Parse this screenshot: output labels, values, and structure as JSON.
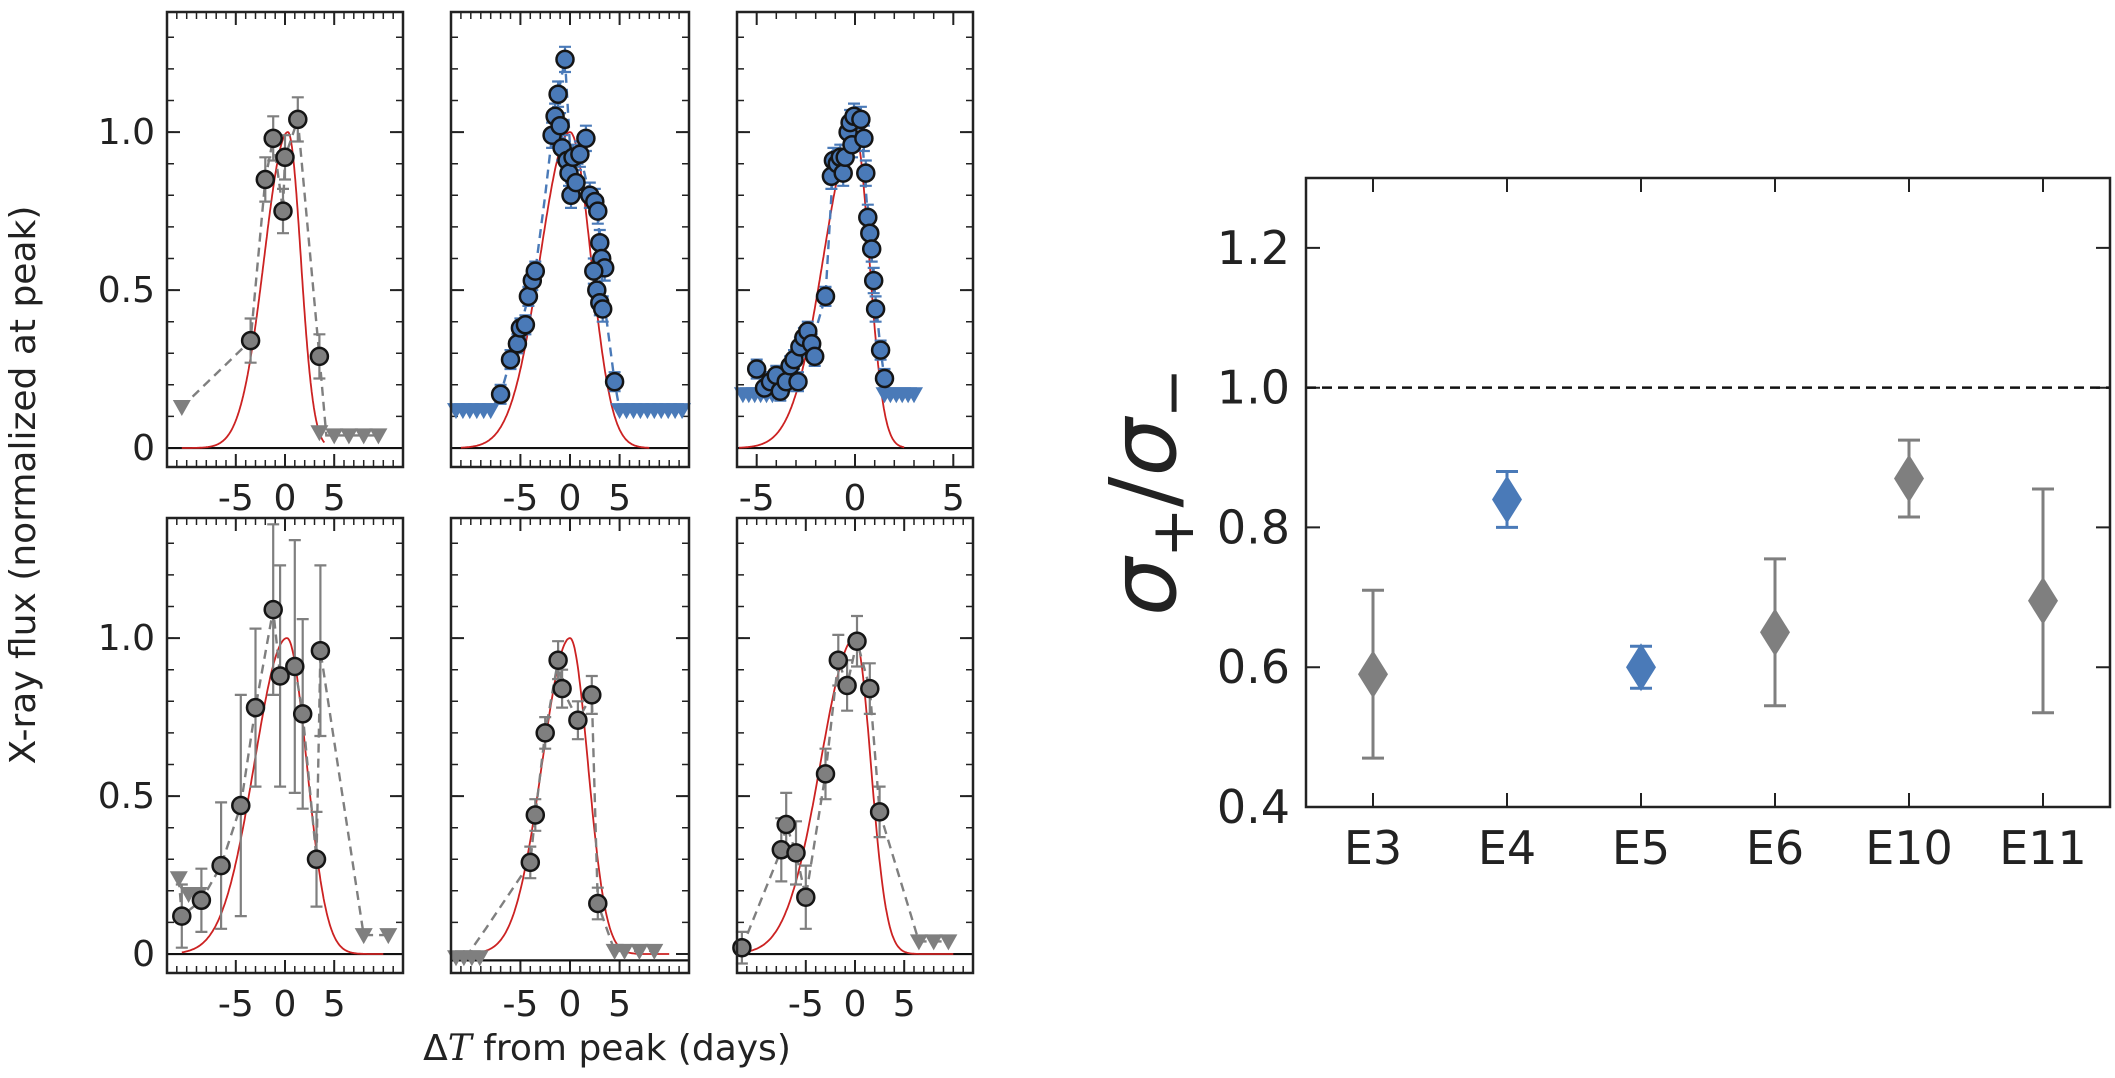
{
  "figure": {
    "ylabel": "X-ray flux (normalized at peak)",
    "xlabel_delta": "Δ",
    "xlabel_var": "T",
    "xlabel_rest": " from peak (days)",
    "ratio_ylabel": {
      "sigma": "σ",
      "plus": "+",
      "slash": "/",
      "minus": "−"
    }
  },
  "colors": {
    "blue": "#4a7ab8",
    "grey": "#7f7f7f",
    "red": "#cc2222",
    "axis": "#222222"
  },
  "chart_data": [
    {
      "id": "p1",
      "type": "scatter",
      "color": "grey",
      "xlim": [
        -12,
        12
      ],
      "ylim": [
        -0.06,
        1.38
      ],
      "xticks": [
        -5,
        0,
        5
      ],
      "yticks": [
        0,
        0.5,
        1.0
      ],
      "ytick_labels": [
        "0",
        "0.5",
        "1.0"
      ],
      "points": [
        [
          -3.5,
          0.34,
          0.07
        ],
        [
          -2,
          0.85,
          0.07
        ],
        [
          -1.2,
          0.98,
          0.07
        ],
        [
          -0.2,
          0.75,
          0.07
        ],
        [
          0,
          0.92,
          0.07
        ],
        [
          1.3,
          1.04,
          0.07
        ],
        [
          3.5,
          0.29,
          0.07
        ]
      ],
      "upper_limits": [
        [
          -10.5,
          0.13
        ],
        [
          3.5,
          0.05
        ],
        [
          5,
          0.04
        ],
        [
          6.5,
          0.04
        ],
        [
          8,
          0.04
        ],
        [
          9.5,
          0.04
        ]
      ],
      "dashed": [
        [
          -10.5,
          0.13
        ],
        [
          -3.5,
          0.34
        ],
        [
          -2,
          0.85
        ],
        [
          -1.2,
          0.98
        ],
        [
          -0.2,
          0.75
        ],
        [
          0,
          0.92
        ],
        [
          1.3,
          1.04
        ],
        [
          3.5,
          0.29
        ],
        [
          4.2,
          0.04
        ],
        [
          9.5,
          0.04
        ]
      ],
      "model": {
        "peak": 0.3,
        "sigma_minus": 2.4,
        "sigma_plus": 1.3,
        "from": -10.5,
        "to": 4
      },
      "baseline": 0
    },
    {
      "id": "p2",
      "type": "scatter",
      "color": "blue",
      "xlim": [
        -12,
        12
      ],
      "ylim": [
        -0.06,
        1.38
      ],
      "xticks": [
        -5,
        0,
        5
      ],
      "yticks": [
        0,
        0.5,
        1.0
      ],
      "points": [
        [
          -7,
          0.17,
          0.03
        ],
        [
          -6,
          0.28,
          0.03
        ],
        [
          -5.3,
          0.33,
          0.03
        ],
        [
          -5,
          0.38,
          0.03
        ],
        [
          -4.5,
          0.39,
          0.03
        ],
        [
          -4.2,
          0.48,
          0.03
        ],
        [
          -3.8,
          0.53,
          0.03
        ],
        [
          -3.5,
          0.56,
          0.03
        ],
        [
          -1.8,
          0.99,
          0.04
        ],
        [
          -1.5,
          1.05,
          0.04
        ],
        [
          -1.2,
          1.12,
          0.04
        ],
        [
          -1,
          1.02,
          0.04
        ],
        [
          -0.8,
          0.95,
          0.04
        ],
        [
          -0.5,
          1.23,
          0.04
        ],
        [
          -0.3,
          0.91,
          0.04
        ],
        [
          -0.1,
          0.87,
          0.04
        ],
        [
          0.1,
          0.8,
          0.04
        ],
        [
          0.3,
          0.92,
          0.04
        ],
        [
          0.6,
          0.84,
          0.04
        ],
        [
          1,
          0.93,
          0.04
        ],
        [
          1.6,
          0.98,
          0.04
        ],
        [
          2,
          0.8,
          0.04
        ],
        [
          2.5,
          0.78,
          0.04
        ],
        [
          2.8,
          0.75,
          0.04
        ],
        [
          3,
          0.65,
          0.04
        ],
        [
          3.2,
          0.6,
          0.04
        ],
        [
          3.5,
          0.57,
          0.04
        ],
        [
          2.4,
          0.56,
          0.04
        ],
        [
          2.7,
          0.5,
          0.04
        ],
        [
          3,
          0.46,
          0.04
        ],
        [
          3.3,
          0.44,
          0.04
        ],
        [
          4.5,
          0.21,
          0.03
        ]
      ],
      "upper_limits": [
        [
          -11.5,
          0.12
        ],
        [
          -10.8,
          0.12
        ],
        [
          -10.1,
          0.12
        ],
        [
          -9.4,
          0.12
        ],
        [
          -8.7,
          0.12
        ],
        [
          -8,
          0.12
        ],
        [
          5,
          0.12
        ],
        [
          5.7,
          0.12
        ],
        [
          6.4,
          0.12
        ],
        [
          7.1,
          0.12
        ],
        [
          7.8,
          0.12
        ],
        [
          8.5,
          0.12
        ],
        [
          9.2,
          0.12
        ],
        [
          9.9,
          0.12
        ],
        [
          10.6,
          0.12
        ],
        [
          11.3,
          0.12
        ]
      ],
      "dashed": [
        [
          -8,
          0.12
        ],
        [
          -7,
          0.17
        ],
        [
          -6,
          0.28
        ],
        [
          -5,
          0.38
        ],
        [
          -4.2,
          0.48
        ],
        [
          -3.5,
          0.56
        ],
        [
          -2.5,
          0.8
        ],
        [
          -1.8,
          0.99
        ],
        [
          -1.2,
          1.12
        ],
        [
          -0.5,
          1.23
        ],
        [
          0.1,
          0.9
        ],
        [
          1,
          0.93
        ],
        [
          2,
          0.8
        ],
        [
          2.8,
          0.75
        ],
        [
          3.3,
          0.5
        ],
        [
          4.5,
          0.21
        ],
        [
          5,
          0.12
        ]
      ],
      "model": {
        "peak": 0,
        "sigma_minus": 3.0,
        "sigma_plus": 2.1,
        "from": -11,
        "to": 8
      },
      "baseline": 0
    },
    {
      "id": "p3",
      "type": "scatter",
      "color": "blue",
      "xlim": [
        -6,
        6
      ],
      "ylim": [
        -0.06,
        1.38
      ],
      "xticks": [
        -5,
        0,
        5
      ],
      "yticks": [
        0,
        0.5,
        1.0
      ],
      "points": [
        [
          -5,
          0.25,
          0.03
        ],
        [
          -4.6,
          0.19,
          0.03
        ],
        [
          -4.3,
          0.21,
          0.03
        ],
        [
          -4,
          0.23,
          0.03
        ],
        [
          -3.8,
          0.18,
          0.03
        ],
        [
          -3.5,
          0.21,
          0.03
        ],
        [
          -3.3,
          0.26,
          0.03
        ],
        [
          -3.1,
          0.28,
          0.03
        ],
        [
          -2.9,
          0.21,
          0.03
        ],
        [
          -2.8,
          0.32,
          0.03
        ],
        [
          -2.6,
          0.35,
          0.03
        ],
        [
          -2.4,
          0.37,
          0.03
        ],
        [
          -2.2,
          0.33,
          0.03
        ],
        [
          -2.05,
          0.29,
          0.03
        ],
        [
          -1.5,
          0.48,
          0.03
        ],
        [
          -1.2,
          0.86,
          0.04
        ],
        [
          -1.1,
          0.91,
          0.04
        ],
        [
          -0.9,
          0.9,
          0.04
        ],
        [
          -0.75,
          0.92,
          0.04
        ],
        [
          -0.6,
          0.87,
          0.04
        ],
        [
          -0.5,
          0.92,
          0.04
        ],
        [
          -0.35,
          1.0,
          0.04
        ],
        [
          -0.25,
          1.03,
          0.04
        ],
        [
          -0.15,
          0.96,
          0.04
        ],
        [
          -0.05,
          1.05,
          0.04
        ],
        [
          0.3,
          1.04,
          0.04
        ],
        [
          0.45,
          0.98,
          0.04
        ],
        [
          0.55,
          0.87,
          0.04
        ],
        [
          0.65,
          0.73,
          0.04
        ],
        [
          0.75,
          0.68,
          0.04
        ],
        [
          0.85,
          0.63,
          0.04
        ],
        [
          0.95,
          0.53,
          0.04
        ],
        [
          1.05,
          0.44,
          0.04
        ],
        [
          1.3,
          0.31,
          0.03
        ],
        [
          1.5,
          0.22,
          0.03
        ]
      ],
      "upper_limits": [
        [
          -5.7,
          0.17
        ],
        [
          -5.4,
          0.17
        ],
        [
          -5.1,
          0.17
        ],
        [
          -4.8,
          0.17
        ],
        [
          -4.5,
          0.17
        ],
        [
          -4.2,
          0.17
        ],
        [
          1.5,
          0.17
        ],
        [
          1.8,
          0.17
        ],
        [
          2.1,
          0.17
        ],
        [
          2.4,
          0.17
        ],
        [
          2.7,
          0.17
        ],
        [
          3.0,
          0.17
        ]
      ],
      "dashed": [
        [
          -4.2,
          0.17
        ],
        [
          -3.5,
          0.21
        ],
        [
          -2.8,
          0.32
        ],
        [
          -2.2,
          0.33
        ],
        [
          -1.5,
          0.48
        ],
        [
          -1.1,
          0.91
        ],
        [
          -0.5,
          0.92
        ],
        [
          -0.05,
          1.05
        ],
        [
          0.3,
          1.04
        ],
        [
          0.65,
          0.73
        ],
        [
          0.95,
          0.53
        ],
        [
          1.3,
          0.31
        ],
        [
          1.5,
          0.22
        ],
        [
          1.8,
          0.17
        ]
      ],
      "model": {
        "peak": 0,
        "sigma_minus": 1.6,
        "sigma_plus": 0.72,
        "from": -5.9,
        "to": 2.5
      },
      "baseline": 0
    },
    {
      "id": "p4",
      "type": "scatter",
      "color": "grey",
      "xlim": [
        -12,
        12
      ],
      "ylim": [
        -0.06,
        1.38
      ],
      "xticks": [
        -5,
        0,
        5
      ],
      "yticks": [
        0,
        0.5,
        1.0
      ],
      "ytick_labels": [
        "0",
        "0.5",
        "1.0"
      ],
      "points": [
        [
          -10.5,
          0.12,
          0.1
        ],
        [
          -8.5,
          0.17,
          0.1
        ],
        [
          -6.5,
          0.28,
          0.2
        ],
        [
          -4.5,
          0.47,
          0.35
        ],
        [
          -3,
          0.78,
          0.25
        ],
        [
          -1.2,
          1.09,
          0.27
        ],
        [
          -0.5,
          0.88,
          0.35
        ],
        [
          1,
          0.91,
          0.4
        ],
        [
          1.8,
          0.76,
          0.3
        ],
        [
          3.2,
          0.3,
          0.15
        ],
        [
          3.6,
          0.96,
          0.27
        ]
      ],
      "upper_limits": [
        [
          -10.8,
          0.24
        ],
        [
          -9.8,
          0.19
        ],
        [
          -8.8,
          0.19
        ],
        [
          8,
          0.06
        ],
        [
          10.5,
          0.06
        ]
      ],
      "dashed": [
        [
          -10.8,
          0.24
        ],
        [
          -10.5,
          0.12
        ],
        [
          -8.5,
          0.17
        ],
        [
          -6.5,
          0.28
        ],
        [
          -4.5,
          0.47
        ],
        [
          -3,
          0.78
        ],
        [
          -1.2,
          1.09
        ],
        [
          -0.5,
          0.88
        ],
        [
          1,
          0.91
        ],
        [
          1.8,
          0.76
        ],
        [
          3.2,
          0.3
        ],
        [
          3.6,
          0.96
        ],
        [
          8,
          0.06
        ],
        [
          10.5,
          0.06
        ]
      ],
      "model": {
        "peak": 0.2,
        "sigma_minus": 3.3,
        "sigma_plus": 2.0,
        "from": -10.5,
        "to": 10
      },
      "baseline": 0
    },
    {
      "id": "p5",
      "type": "scatter",
      "color": "grey",
      "xlim": [
        -12,
        12
      ],
      "ylim": [
        -0.06,
        1.38
      ],
      "xticks": [
        -5,
        0,
        5
      ],
      "yticks": [
        0,
        0.5,
        1.0
      ],
      "points": [
        [
          -4,
          0.29,
          0.05
        ],
        [
          -3.5,
          0.44,
          0.05
        ],
        [
          -2.5,
          0.7,
          0.05
        ],
        [
          -1.2,
          0.93,
          0.06
        ],
        [
          -0.8,
          0.84,
          0.06
        ],
        [
          0.8,
          0.74,
          0.06
        ],
        [
          2.2,
          0.82,
          0.06
        ],
        [
          2.8,
          0.16,
          0.05
        ]
      ],
      "upper_limits": [
        [
          -11.5,
          -0.01
        ],
        [
          -10.7,
          -0.01
        ],
        [
          -9.9,
          -0.01
        ],
        [
          -9.1,
          -0.01
        ],
        [
          4.5,
          0.01
        ],
        [
          5.5,
          0.01
        ],
        [
          7,
          0.01
        ],
        [
          8.5,
          0.01
        ]
      ],
      "dashed": [
        [
          -10.5,
          -0.01
        ],
        [
          -8.5,
          0.08
        ],
        [
          -4,
          0.29
        ],
        [
          -3.5,
          0.44
        ],
        [
          -2.5,
          0.7
        ],
        [
          -1.2,
          0.93
        ],
        [
          -0.8,
          0.84
        ],
        [
          0.8,
          0.74
        ],
        [
          2.2,
          0.82
        ],
        [
          2.8,
          0.16
        ],
        [
          4.5,
          0.01
        ],
        [
          8.5,
          0.01
        ]
      ],
      "model": {
        "peak": 0,
        "sigma_minus": 2.8,
        "sigma_plus": 1.8,
        "from": -10.5,
        "to": 10
      },
      "baseline": -0.02
    },
    {
      "id": "p6",
      "type": "scatter",
      "color": "grey",
      "xlim": [
        -12,
        12
      ],
      "ylim": [
        -0.06,
        1.38
      ],
      "xticks": [
        -5,
        0,
        5
      ],
      "yticks": [
        0,
        0.5,
        1.0
      ],
      "points": [
        [
          -11.5,
          0.02,
          0.05
        ],
        [
          -7.5,
          0.33,
          0.1
        ],
        [
          -7,
          0.41,
          0.1
        ],
        [
          -6,
          0.32,
          0.1
        ],
        [
          -5,
          0.18,
          0.1
        ],
        [
          -3,
          0.57,
          0.08
        ],
        [
          -1.7,
          0.93,
          0.08
        ],
        [
          -0.8,
          0.85,
          0.08
        ],
        [
          0.2,
          0.99,
          0.08
        ],
        [
          1.5,
          0.84,
          0.08
        ],
        [
          2.5,
          0.45,
          0.08
        ]
      ],
      "upper_limits": [
        [
          6.5,
          0.04
        ],
        [
          8,
          0.04
        ],
        [
          9.5,
          0.04
        ]
      ],
      "dashed": [
        [
          -11.5,
          0.02
        ],
        [
          -7.5,
          0.33
        ],
        [
          -7,
          0.41
        ],
        [
          -6,
          0.32
        ],
        [
          -5,
          0.18
        ],
        [
          -3,
          0.57
        ],
        [
          -1.7,
          0.93
        ],
        [
          -0.8,
          0.85
        ],
        [
          0.2,
          0.99
        ],
        [
          1.5,
          0.84
        ],
        [
          2.5,
          0.45
        ],
        [
          6.5,
          0.04
        ],
        [
          9.5,
          0.04
        ]
      ],
      "model": {
        "peak": 0,
        "sigma_minus": 3.5,
        "sigma_plus": 1.6,
        "from": -11.5,
        "to": 10
      },
      "baseline": 0
    },
    {
      "id": "ratio",
      "type": "scatter",
      "categories": [
        "E3",
        "E4",
        "E5",
        "E6",
        "E10",
        "E11"
      ],
      "values": [
        0.59,
        0.84,
        0.6,
        0.65,
        0.87,
        0.695
      ],
      "err_low": [
        0.12,
        0.04,
        0.03,
        0.105,
        0.055,
        0.16
      ],
      "err_high": [
        0.12,
        0.04,
        0.03,
        0.105,
        0.055,
        0.16
      ],
      "colors": [
        "grey",
        "blue",
        "blue",
        "grey",
        "grey",
        "grey"
      ],
      "ylim": [
        0.4,
        1.3
      ],
      "yticks": [
        0.4,
        0.6,
        0.8,
        1.0,
        1.2
      ],
      "ytick_labels": [
        "0.4",
        "0.6",
        "0.8",
        "1.0",
        "1.2"
      ],
      "reference_line": 1.0,
      "reference_style": "dashed"
    }
  ]
}
